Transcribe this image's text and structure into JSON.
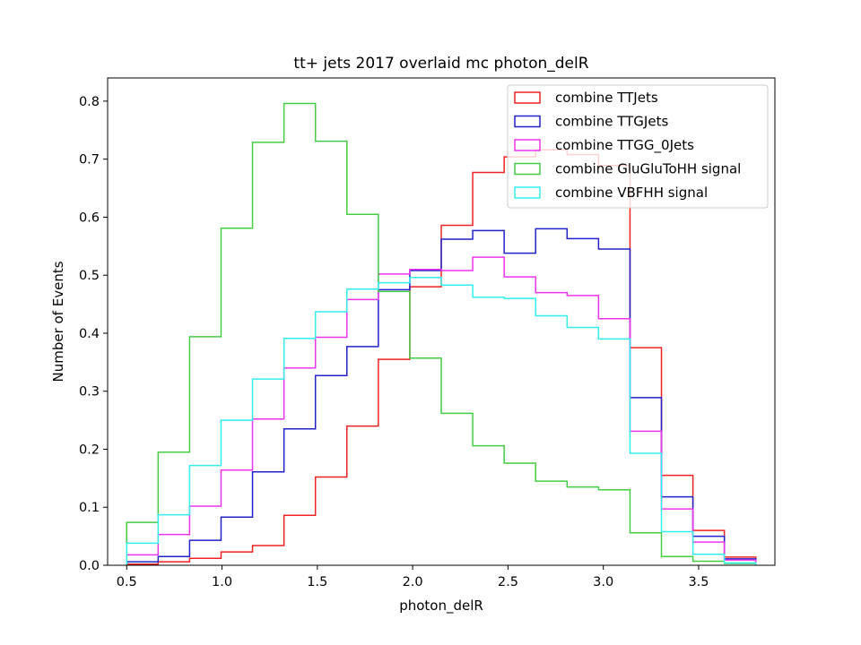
{
  "chart_data": {
    "type": "step-histogram",
    "title": "tt+ jets 2017 overlaid mc photon_delR",
    "xlabel": "photon_delR",
    "ylabel": "Number of Events",
    "xlim": [
      0.4,
      3.9
    ],
    "ylim": [
      0.0,
      0.84
    ],
    "xticks": [
      0.5,
      1.0,
      1.5,
      2.0,
      2.5,
      3.0,
      3.5
    ],
    "xtick_labels": [
      "0.5",
      "1.0",
      "1.5",
      "2.0",
      "2.5",
      "3.0",
      "3.5"
    ],
    "yticks": [
      0.0,
      0.1,
      0.2,
      0.3,
      0.4,
      0.5,
      0.6,
      0.7,
      0.8
    ],
    "ytick_labels": [
      "0.0",
      "0.1",
      "0.2",
      "0.3",
      "0.4",
      "0.5",
      "0.6",
      "0.7",
      "0.8"
    ],
    "bin_edges": [
      0.5,
      0.665,
      0.83,
      0.995,
      1.16,
      1.325,
      1.49,
      1.655,
      1.82,
      1.985,
      2.15,
      2.315,
      2.48,
      2.645,
      2.81,
      2.975,
      3.14,
      3.305,
      3.47,
      3.635,
      3.8
    ],
    "grid": false,
    "legend_position": "upper right",
    "series": [
      {
        "name": "combine TTJets",
        "color": "#ee2222",
        "values": [
          0.002,
          0.006,
          0.012,
          0.023,
          0.034,
          0.086,
          0.152,
          0.24,
          0.355,
          0.48,
          0.586,
          0.677,
          0.704,
          0.716,
          0.708,
          0.689,
          0.375,
          0.155,
          0.06,
          0.014
        ]
      },
      {
        "name": "combine TTGJets",
        "color": "#2222cc",
        "values": [
          0.006,
          0.015,
          0.043,
          0.083,
          0.161,
          0.235,
          0.327,
          0.377,
          0.475,
          0.508,
          0.562,
          0.577,
          0.538,
          0.58,
          0.563,
          0.545,
          0.289,
          0.118,
          0.05,
          0.011
        ]
      },
      {
        "name": "combine TTGG_0Jets",
        "color": "#ee33ee",
        "values": [
          0.018,
          0.053,
          0.102,
          0.164,
          0.252,
          0.34,
          0.393,
          0.458,
          0.502,
          0.51,
          0.508,
          0.531,
          0.497,
          0.47,
          0.465,
          0.425,
          0.231,
          0.097,
          0.04,
          0.009
        ]
      },
      {
        "name": "combine GluGluToHH signal",
        "color": "#44cc44",
        "values": [
          0.074,
          0.195,
          0.394,
          0.581,
          0.729,
          0.796,
          0.731,
          0.605,
          0.472,
          0.357,
          0.262,
          0.206,
          0.176,
          0.145,
          0.135,
          0.13,
          0.056,
          0.015,
          0.007,
          0.003
        ]
      },
      {
        "name": "combine VBFHH signal",
        "color": "#33eeee",
        "values": [
          0.038,
          0.087,
          0.172,
          0.25,
          0.321,
          0.391,
          0.437,
          0.476,
          0.487,
          0.496,
          0.483,
          0.462,
          0.46,
          0.43,
          0.41,
          0.39,
          0.193,
          0.058,
          0.019,
          0.004
        ]
      }
    ]
  }
}
